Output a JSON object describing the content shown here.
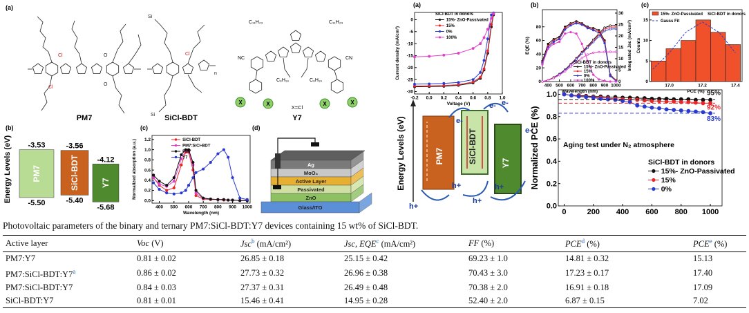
{
  "figure": {
    "panel_labels": [
      "(a)",
      "(b)",
      "(c)",
      "(d)",
      "(a)",
      "(b)",
      "(c)"
    ],
    "molecules": [
      {
        "name": "PM7",
        "atoms": [
          "Cl",
          "Cl",
          "O",
          "O"
        ]
      },
      {
        "name": "SiCl-BDT",
        "atoms": [
          "Si",
          "Si",
          "Cl",
          "n"
        ]
      },
      {
        "name": "Y7",
        "note": "X=Cl",
        "atoms": [
          "C₁₁H₂₃",
          "C₁₁H₂₃",
          "C₉H₁₉",
          "C₉H₁₉",
          "X",
          "X",
          "X",
          "X",
          "NC",
          "CN"
        ]
      }
    ],
    "device_layers": [
      "Ag",
      "MoO₃",
      "Active Layer",
      "Passivated",
      "ZnO",
      "Glass/ITO"
    ],
    "energy_diagram": {
      "ylabel": "Energy Levels (eV)",
      "materials": [
        "PM7",
        "SiCl-BDT",
        "Y7"
      ],
      "electron": "e-",
      "hole": "h+"
    }
  },
  "chart_data": [
    {
      "type": "energy_levels",
      "ylabel": "Energy Levels (eV)",
      "categories": [
        "PM7",
        "SiCl-BDT",
        "Y7"
      ],
      "colors": [
        "#b9dc94",
        "#c8621e",
        "#4f8a2e"
      ],
      "lumo": [
        -3.53,
        -3.56,
        -4.12
      ],
      "homo": [
        -5.5,
        -5.4,
        -5.68
      ],
      "homo_labels": [
        "-5.50",
        "-5.40",
        "-5.68"
      ],
      "ylim": [
        -5.9,
        -3.2
      ]
    },
    {
      "type": "line",
      "xlabel": "Wavelength (nm)",
      "ylabel": "Normalized absorption (a.u.)",
      "x": [
        360,
        400,
        450,
        500,
        550,
        580,
        600,
        630,
        650,
        700,
        750,
        800,
        840,
        870,
        900,
        950,
        1000
      ],
      "series": [
        {
          "name": "SiCl-BDT",
          "color": "#e8262a",
          "values": [
            0.45,
            0.3,
            0.2,
            0.25,
            0.7,
            0.95,
            0.95,
            0.6,
            0.1,
            0.03,
            0.02,
            0.02,
            0.01,
            0.01,
            0.01,
            0,
            0
          ]
        },
        {
          "name": "PM7:SiCl-BDT",
          "color": "#e040c8",
          "values": [
            0.45,
            0.32,
            0.28,
            0.38,
            0.82,
            0.98,
            0.98,
            0.7,
            0.15,
            0.04,
            0.03,
            0.02,
            0.02,
            0.01,
            0.01,
            0,
            0
          ]
        },
        {
          "name": "PM7",
          "color": "#111111",
          "values": [
            0.5,
            0.38,
            0.3,
            0.45,
            0.9,
            1,
            1,
            0.75,
            0.2,
            0.05,
            0.03,
            0.02,
            0.02,
            0.01,
            0.01,
            0,
            0
          ]
        },
        {
          "name": "Y7",
          "color": "#2a3ad0",
          "values": [
            0.35,
            0.22,
            0.15,
            0.13,
            0.15,
            0.2,
            0.3,
            0.45,
            0.55,
            0.62,
            0.75,
            0.92,
            1,
            0.85,
            0.45,
            0.05,
            0.02
          ]
        }
      ],
      "xlim": [
        350,
        1020
      ],
      "ylim": [
        -0.05,
        1.28
      ],
      "xticks": [
        400,
        500,
        600,
        700,
        800,
        900,
        1000
      ],
      "yticks": [
        {
          "value": 0,
          "label": "0.0"
        },
        0.2,
        0.4,
        0.6,
        0.8,
        {
          "value": 1,
          "label": "1.0"
        },
        1.2
      ]
    },
    {
      "type": "line",
      "xlabel": "Voltage (V)",
      "ylabel": "Current density (mA/cm²)",
      "legend_title": "SiCl-BDT in donors",
      "x": [
        -0.2,
        0,
        0.2,
        0.4,
        0.6,
        0.7,
        0.75,
        0.8,
        0.85,
        0.88
      ],
      "series": [
        {
          "name": "15%- ZnO-Passivated",
          "color": "#111111",
          "values": [
            -28,
            -27.9,
            -27.8,
            -27.4,
            -26.4,
            -24.5,
            -21,
            -14,
            -3,
            2
          ]
        },
        {
          "name": "15%",
          "color": "#e8262a",
          "values": [
            -27.7,
            -27.6,
            -27.5,
            -27.1,
            -26,
            -24,
            -20.5,
            -13,
            -2,
            2.5
          ]
        },
        {
          "name": "0%",
          "color": "#2a3ad0",
          "values": [
            -26.9,
            -26.8,
            -26.6,
            -26.2,
            -25,
            -22,
            -17,
            -8,
            2,
            2.8
          ]
        },
        {
          "name": "100%",
          "color": "#e040c8",
          "values": [
            -15.5,
            -15.3,
            -14.8,
            -14,
            -12,
            -10,
            -7.5,
            -4,
            0.5,
            2.5
          ]
        }
      ],
      "xlim": [
        -0.2,
        1
      ],
      "ylim": [
        -31,
        3
      ],
      "xticks": [
        -0.2,
        {
          "value": 0,
          "label": "0.0"
        },
        0.2,
        0.4,
        0.6,
        0.8,
        {
          "value": 1,
          "label": "1.0"
        }
      ],
      "yticks": [
        0,
        -5,
        -10,
        -15,
        -20,
        -25,
        -30
      ]
    },
    {
      "type": "line",
      "xlabel": "Wavelength (nm)",
      "ylabel": "EQE (%)",
      "y2label": "Integrated Jsc (mA/cm²)",
      "legend_title": "SiCl-BDT in donors",
      "x": [
        350,
        400,
        450,
        500,
        550,
        600,
        650,
        700,
        750,
        800,
        850,
        900,
        950,
        1000
      ],
      "series": [
        {
          "name": "15%- ZnO-Passivated",
          "color": "#111111",
          "values": [
            30,
            55,
            62,
            65,
            80,
            85,
            88,
            85,
            80,
            78,
            75,
            60,
            10,
            2
          ]
        },
        {
          "name": "15%",
          "color": "#e8262a",
          "values": [
            28,
            52,
            60,
            63,
            78,
            84,
            86,
            84,
            79,
            76,
            73,
            58,
            9,
            2
          ]
        },
        {
          "name": "0%",
          "color": "#2a3ad0",
          "values": [
            27,
            50,
            58,
            62,
            76,
            82,
            85,
            83,
            78,
            75,
            71,
            56,
            8,
            1
          ]
        },
        {
          "name": "100%",
          "color": "#e040c8",
          "values": [
            25,
            48,
            55,
            58,
            70,
            72,
            70,
            55,
            30,
            10,
            3,
            1,
            0,
            0
          ]
        },
        {
          "color": "#111111",
          "axis": "y2",
          "values": [
            0,
            0.6,
            1.8,
            3.3,
            5.2,
            7.6,
            10.2,
            12.9,
            15.6,
            18.3,
            21,
            23.6,
            24.5,
            24.6
          ]
        },
        {
          "color": "#e8262a",
          "axis": "y2",
          "values": [
            0,
            0.6,
            1.7,
            3.2,
            5,
            7.4,
            10,
            12.6,
            15.2,
            17.8,
            20.4,
            22.9,
            23.8,
            23.9
          ]
        },
        {
          "color": "#2a3ad0",
          "axis": "y2",
          "values": [
            0,
            0.5,
            1.6,
            3.1,
            4.9,
            7.2,
            9.7,
            12.3,
            14.8,
            17.3,
            19.8,
            22.2,
            23,
            23.1
          ]
        },
        {
          "color": "#e040c8",
          "axis": "y2",
          "values": [
            0,
            0.5,
            1.5,
            2.8,
            4.5,
            6.5,
            8.5,
            10.3,
            11.8,
            12.6,
            12.9,
            13,
            13,
            13
          ]
        }
      ],
      "xlim": [
        350,
        1010
      ],
      "ylim": [
        0,
        105
      ],
      "y2lim": [
        0,
        31.5
      ],
      "xticks": [
        400,
        500,
        600,
        700,
        800,
        900,
        1000
      ],
      "yticks": [
        0,
        20,
        40,
        60,
        80
      ],
      "y2ticks": [
        0,
        5,
        10,
        15,
        20,
        25,
        30
      ]
    },
    {
      "type": "histogram",
      "xlabel": "PCE (%)",
      "ylabel": "Counts",
      "note": "SiCl-BDT in donors",
      "name": "15%- ZnO-Passivated",
      "color": "#f0502a",
      "bins": [
        16.89,
        16.98,
        17.07,
        17.16,
        17.25,
        17.34,
        17.43
      ],
      "counts": [
        5,
        8,
        10,
        15,
        12,
        9
      ],
      "fit": {
        "name": "Gauss Fit",
        "x": [
          16.9,
          17,
          17.1,
          17.2,
          17.3,
          17.4
        ],
        "y": [
          3,
          7,
          12,
          14.5,
          12,
          7
        ]
      },
      "xlim": [
        16.88,
        17.44
      ],
      "ylim": [
        0,
        17.5
      ],
      "xticks": [
        {
          "value": 17,
          "label": "17.0"
        },
        17.2,
        17.4
      ],
      "yticks": [
        0,
        5,
        10,
        15
      ]
    },
    {
      "type": "line",
      "ylabel": "Normalized PCE (%)",
      "annotation": "Aging test under N₂ atmosphere",
      "legend_title": "SiCl-BDT in donors",
      "x": [
        0,
        50,
        100,
        150,
        200,
        250,
        300,
        350,
        400,
        450,
        500,
        550,
        600,
        650,
        700,
        750,
        800,
        850,
        900,
        950,
        1000
      ],
      "series": [
        {
          "name": "15%- ZnO-Passivated",
          "color": "#111111",
          "values": [
            1,
            0.99,
            0.99,
            0.985,
            0.98,
            0.98,
            0.975,
            0.975,
            0.97,
            0.97,
            0.965,
            0.965,
            0.96,
            0.96,
            0.96,
            0.955,
            0.955,
            0.955,
            0.95,
            0.95,
            0.95
          ]
        },
        {
          "name": "15%",
          "color": "#e8262a",
          "values": [
            1,
            0.99,
            0.985,
            0.98,
            0.975,
            0.97,
            0.965,
            0.96,
            0.955,
            0.95,
            0.95,
            0.945,
            0.94,
            0.94,
            0.935,
            0.935,
            0.93,
            0.93,
            0.925,
            0.92,
            0.92
          ]
        },
        {
          "name": "0%",
          "color": "#2a3ad0",
          "values": [
            1,
            0.99,
            0.98,
            0.975,
            0.97,
            0.96,
            0.955,
            0.95,
            0.94,
            0.93,
            0.9,
            0.89,
            0.88,
            0.875,
            0.865,
            0.86,
            0.855,
            0.85,
            0.845,
            0.84,
            0.83
          ]
        }
      ],
      "end_labels": [
        {
          "value": 0.95,
          "label": "95%"
        },
        {
          "value": 0.92,
          "label": "92%"
        },
        {
          "value": 0.83,
          "label": "83%"
        }
      ],
      "xlim": [
        -40,
        1080
      ],
      "ylim": [
        0,
        1.04
      ],
      "xticks": [
        0,
        200,
        400,
        600,
        800,
        1000
      ],
      "yticks": [
        {
          "value": 0,
          "label": "0.0"
        },
        0.2,
        0.4,
        0.6,
        0.8,
        {
          "value": 1,
          "label": "1.0"
        }
      ]
    }
  ],
  "table": {
    "caption": "Photovoltaic parameters of the binary and ternary PM7:SiCl-BDT:Y7 devices containing 15 wt% of SiCl-BDT.",
    "header": [
      {
        "text": "Active layer"
      },
      {
        "text": "Voc",
        "unit": "(V)"
      },
      {
        "text": "Jsc",
        "sup": "b",
        "unit": "(mA/cm²)"
      },
      {
        "text": "Jsc, EQE",
        "sup": "c",
        "unit": "(mA/cm²)"
      },
      {
        "text": "FF",
        "unit": "(%)"
      },
      {
        "text": "PCE",
        "sup": "d",
        "unit": "(%)"
      },
      {
        "text": "PCE",
        "sup": "e",
        "unit": "(%)"
      }
    ],
    "rows": [
      {
        "layer": "PM7:Y7",
        "values": [
          "0.81 ± 0.02",
          "26.85 ± 0.18",
          "25.15 ± 0.42",
          "69.23 ± 1.0",
          "14.81 ± 0.32",
          "15.13"
        ]
      },
      {
        "layer": "PM7:SiCl-BDT:Y7",
        "sup": "a",
        "values": [
          "0.86 ± 0.02",
          "27.73 ± 0.32",
          "26.96 ± 0.38",
          "70.43 ± 3.0",
          "17.23 ± 0.17",
          "17.40"
        ]
      },
      {
        "layer": "PM7:SiCl-BDT:Y7",
        "values": [
          "0.84 ± 0.03",
          "27.37 ± 0.31",
          "26.49 ± 0.48",
          "70.38 ± 2.0",
          "16.91 ± 0.18",
          "17.09"
        ]
      },
      {
        "layer": "SiCl-BDT:Y7",
        "values": [
          "0.81 ± 0.01",
          "15.46 ± 0.41",
          "14.95 ± 0.28",
          "52.40 ± 2.0",
          "6.87 ± 0.15",
          "7.02"
        ]
      }
    ]
  }
}
